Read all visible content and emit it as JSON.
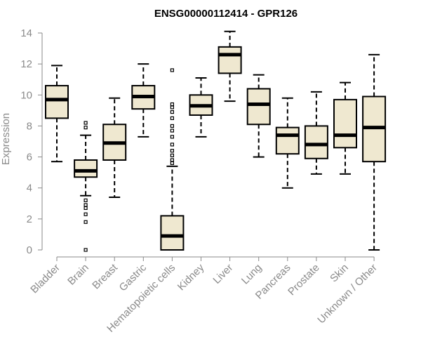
{
  "chart_data": {
    "type": "boxplot",
    "title": "ENSG00000112414 - GPR126",
    "xlabel": "",
    "ylabel": "Expression",
    "ylim": [
      0,
      14
    ],
    "yticks": [
      0,
      2,
      4,
      6,
      8,
      10,
      12,
      14
    ],
    "grid": false,
    "legend": "none",
    "box_fill": "#efe8d0",
    "box_stroke": "#000000",
    "categories": [
      "Bladder",
      "Brain",
      "Breast",
      "Gastric",
      "Hematopoietic cells",
      "Kidney",
      "Liver",
      "Lung",
      "Pancreas",
      "Prostate",
      "Skin",
      "Unknown / Other"
    ],
    "boxes": [
      {
        "whisker_low": 5.7,
        "q1": 8.5,
        "median": 9.7,
        "q3": 10.6,
        "whisker_high": 11.9,
        "outliers": []
      },
      {
        "whisker_low": 3.5,
        "q1": 4.7,
        "median": 5.1,
        "q3": 5.8,
        "whisker_high": 7.4,
        "outliers": [
          0.0,
          1.8,
          2.3,
          2.7,
          2.9,
          3.2,
          7.9,
          8.2
        ]
      },
      {
        "whisker_low": 3.4,
        "q1": 5.8,
        "median": 6.9,
        "q3": 8.1,
        "whisker_high": 9.8,
        "outliers": []
      },
      {
        "whisker_low": 7.3,
        "q1": 9.1,
        "median": 9.9,
        "q3": 10.6,
        "whisker_high": 12.0,
        "outliers": []
      },
      {
        "whisker_low": 0.0,
        "q1": 0.0,
        "median": 0.9,
        "q3": 2.2,
        "whisker_high": 5.4,
        "outliers": [
          5.6,
          5.8,
          6.1,
          6.4,
          6.8,
          7.3,
          7.7,
          8.0,
          8.5,
          8.9,
          9.2,
          9.4,
          11.6
        ]
      },
      {
        "whisker_low": 7.3,
        "q1": 8.7,
        "median": 9.3,
        "q3": 10.0,
        "whisker_high": 11.1,
        "outliers": []
      },
      {
        "whisker_low": 9.6,
        "q1": 11.4,
        "median": 12.6,
        "q3": 13.1,
        "whisker_high": 14.1,
        "outliers": []
      },
      {
        "whisker_low": 6.0,
        "q1": 8.1,
        "median": 9.4,
        "q3": 10.4,
        "whisker_high": 11.3,
        "outliers": []
      },
      {
        "whisker_low": 4.0,
        "q1": 6.2,
        "median": 7.4,
        "q3": 7.9,
        "whisker_high": 9.8,
        "outliers": []
      },
      {
        "whisker_low": 4.9,
        "q1": 5.9,
        "median": 6.8,
        "q3": 8.0,
        "whisker_high": 10.2,
        "outliers": []
      },
      {
        "whisker_low": 4.9,
        "q1": 6.6,
        "median": 7.4,
        "q3": 9.7,
        "whisker_high": 10.8,
        "outliers": []
      },
      {
        "whisker_low": 0.0,
        "q1": 5.7,
        "median": 7.9,
        "q3": 9.9,
        "whisker_high": 12.6,
        "outliers": []
      }
    ]
  }
}
